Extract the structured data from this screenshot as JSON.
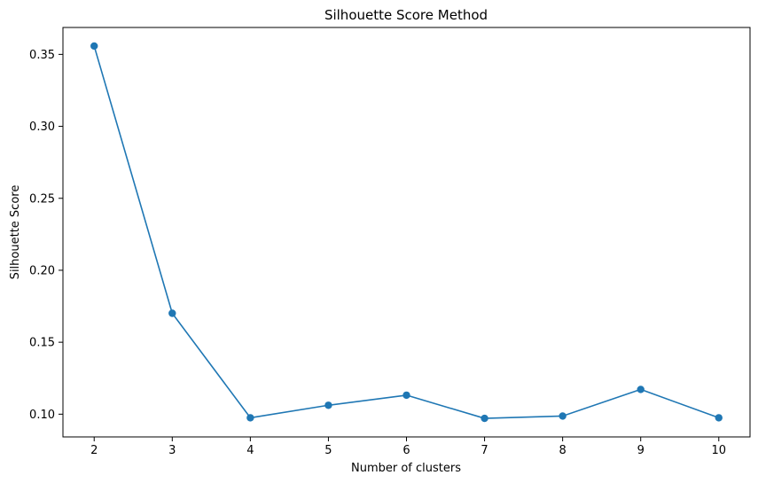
{
  "chart_data": {
    "type": "line",
    "title": "Silhouette Score Method",
    "xlabel": "Number of clusters",
    "ylabel": "Silhouette Score",
    "x": [
      2,
      3,
      4,
      5,
      6,
      7,
      8,
      9,
      10
    ],
    "series": [
      {
        "values": [
          0.3558,
          0.1701,
          0.0975,
          0.1062,
          0.1132,
          0.0971,
          0.0987,
          0.1172,
          0.0975
        ],
        "color": "#1f77b4",
        "marker": "circle"
      }
    ],
    "xticks": [
      "2",
      "3",
      "4",
      "5",
      "6",
      "7",
      "8",
      "9",
      "10"
    ],
    "yticks": [
      "0.10",
      "0.15",
      "0.20",
      "0.25",
      "0.30",
      "0.35"
    ],
    "ytick_values": [
      0.1,
      0.15,
      0.2,
      0.25,
      0.3,
      0.35
    ],
    "xlim": [
      1.6,
      10.4
    ],
    "ylim": [
      0.0842,
      0.3687
    ],
    "grid": false,
    "legend": false
  }
}
